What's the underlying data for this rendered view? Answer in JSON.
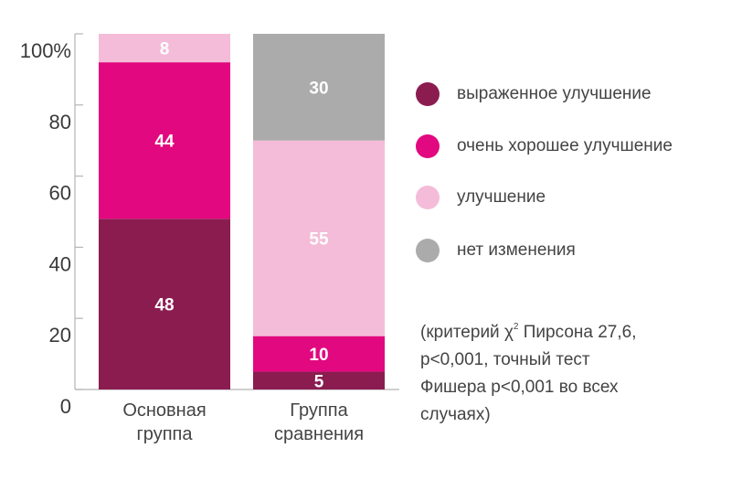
{
  "chart_data": {
    "type": "bar",
    "stacked": true,
    "categories": [
      "Основная группа",
      "Группа сравнения"
    ],
    "category_lines": [
      [
        "Основная",
        "группа"
      ],
      [
        "Группа",
        "сравнения"
      ]
    ],
    "series": [
      {
        "name": "выраженное улучшение",
        "color": "#8B1C50",
        "values": [
          48,
          5
        ]
      },
      {
        "name": "очень хорошее улучшение",
        "color": "#E2087F",
        "values": [
          44,
          10
        ]
      },
      {
        "name": "улучшение",
        "color": "#F4BCD8",
        "values": [
          8,
          55
        ]
      },
      {
        "name": "нет изменения",
        "color": "#ABABAB",
        "values": [
          0,
          30
        ]
      }
    ],
    "yticks": [
      "0",
      "20",
      "40",
      "60",
      "80",
      "100%"
    ],
    "ytick_values": [
      0,
      20,
      40,
      60,
      80,
      100
    ],
    "ylim": [
      0,
      100
    ],
    "grid": false,
    "legend_placement": "right",
    "title": "",
    "xlabel": "",
    "ylabel": ""
  },
  "note": {
    "line1_pre": "(критерий χ",
    "line1_sup": "2",
    "line1_post": " Пирсона 27,6,",
    "line2": "p<0,001, точный тест",
    "line3": "Фишера p<0,001 во всех",
    "line4": "случаях)"
  }
}
